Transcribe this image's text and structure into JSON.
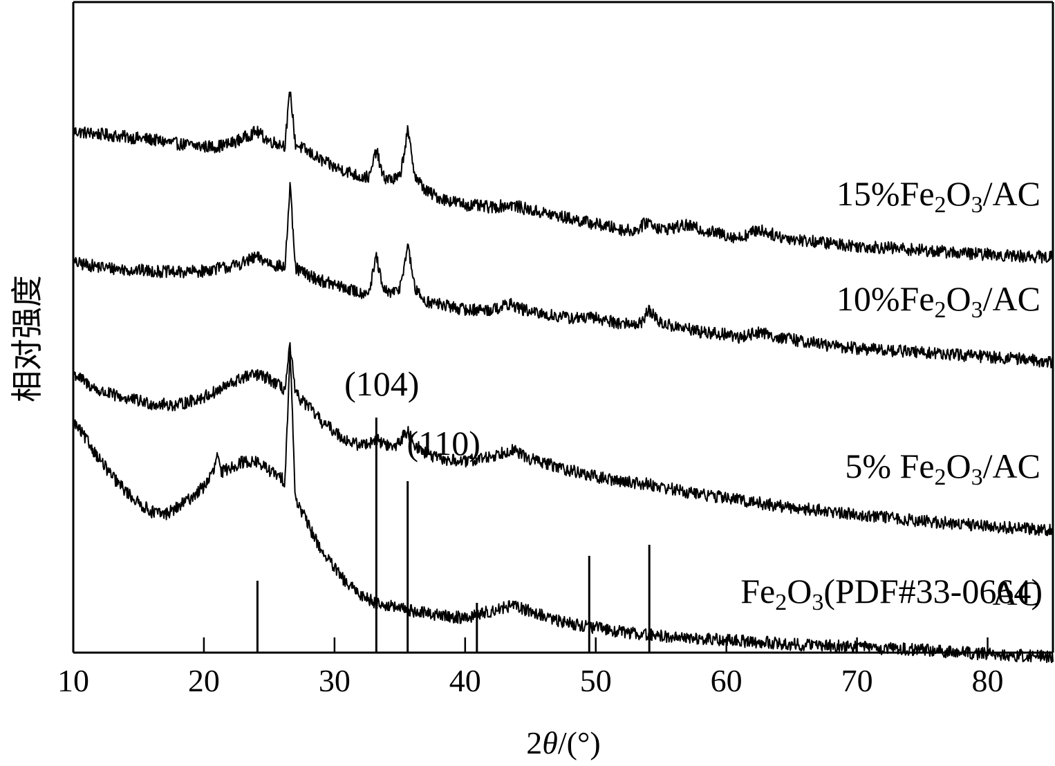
{
  "chart_data": {
    "type": "line",
    "xlabel": {
      "prefix": "2",
      "theta": "θ",
      "suffix": "/(°)"
    },
    "ylabel": "相对强度",
    "xlim": [
      10,
      85
    ],
    "xticks": [
      10,
      20,
      30,
      40,
      50,
      60,
      70,
      80
    ],
    "grid": false,
    "legend": "labels at right end of each trace",
    "series": [
      {
        "name": "15%Fe2O3/AC",
        "label_parts": [
          "15%Fe",
          "2",
          "O",
          "3",
          "/AC"
        ],
        "offset": 3.0,
        "points": [
          [
            10,
            0.95
          ],
          [
            12,
            0.93
          ],
          [
            14,
            0.91
          ],
          [
            16,
            0.89
          ],
          [
            18,
            0.86
          ],
          [
            20,
            0.84
          ],
          [
            21,
            0.84
          ],
          [
            22,
            0.86
          ],
          [
            23,
            0.9
          ],
          [
            24,
            0.95
          ],
          [
            25,
            0.88
          ],
          [
            26.2,
            0.85
          ],
          [
            26.6,
            1.25
          ],
          [
            27.0,
            0.86
          ],
          [
            28,
            0.8
          ],
          [
            29,
            0.74
          ],
          [
            30,
            0.69
          ],
          [
            31,
            0.66
          ],
          [
            32,
            0.62
          ],
          [
            32.7,
            0.62
          ],
          [
            33.2,
            0.82
          ],
          [
            33.7,
            0.62
          ],
          [
            34.5,
            0.6
          ],
          [
            35.0,
            0.62
          ],
          [
            35.6,
            0.95
          ],
          [
            36.2,
            0.62
          ],
          [
            37,
            0.52
          ],
          [
            38,
            0.47
          ],
          [
            40,
            0.42
          ],
          [
            42,
            0.4
          ],
          [
            43.5,
            0.42
          ],
          [
            45,
            0.38
          ],
          [
            48,
            0.32
          ],
          [
            50,
            0.28
          ],
          [
            52,
            0.24
          ],
          [
            53,
            0.23
          ],
          [
            54,
            0.3
          ],
          [
            55,
            0.24
          ],
          [
            57,
            0.27
          ],
          [
            58,
            0.24
          ],
          [
            60,
            0.2
          ],
          [
            61,
            0.18
          ],
          [
            62.5,
            0.24
          ],
          [
            64,
            0.19
          ],
          [
            66,
            0.16
          ],
          [
            68,
            0.14
          ],
          [
            70,
            0.12
          ],
          [
            72,
            0.11
          ],
          [
            75,
            0.09
          ],
          [
            78,
            0.07
          ],
          [
            80,
            0.06
          ],
          [
            82,
            0.05
          ],
          [
            85,
            0.04
          ]
        ]
      },
      {
        "name": "10%Fe2O3/AC",
        "label_parts": [
          "10%Fe",
          "2",
          "O",
          "3",
          "/AC"
        ],
        "offset": 2.0,
        "points": [
          [
            10,
            1.0
          ],
          [
            12,
            0.97
          ],
          [
            14,
            0.95
          ],
          [
            16,
            0.94
          ],
          [
            18,
            0.93
          ],
          [
            20,
            0.94
          ],
          [
            21,
            0.96
          ],
          [
            22,
            0.97
          ],
          [
            23,
            1.0
          ],
          [
            24,
            1.04
          ],
          [
            25,
            1.0
          ],
          [
            26.2,
            0.96
          ],
          [
            26.6,
            1.55
          ],
          [
            27.0,
            0.96
          ],
          [
            28,
            0.91
          ],
          [
            29,
            0.87
          ],
          [
            30,
            0.84
          ],
          [
            31,
            0.81
          ],
          [
            32,
            0.78
          ],
          [
            32.7,
            0.8
          ],
          [
            33.2,
            1.05
          ],
          [
            33.7,
            0.8
          ],
          [
            34.5,
            0.78
          ],
          [
            35.0,
            0.82
          ],
          [
            35.6,
            1.12
          ],
          [
            36.2,
            0.8
          ],
          [
            37,
            0.72
          ],
          [
            38,
            0.7
          ],
          [
            40,
            0.66
          ],
          [
            42,
            0.66
          ],
          [
            43.5,
            0.7
          ],
          [
            45,
            0.64
          ],
          [
            48,
            0.6
          ],
          [
            50,
            0.6
          ],
          [
            52,
            0.56
          ],
          [
            53.5,
            0.56
          ],
          [
            54,
            0.66
          ],
          [
            55,
            0.56
          ],
          [
            57,
            0.52
          ],
          [
            58,
            0.5
          ],
          [
            60,
            0.48
          ],
          [
            61,
            0.46
          ],
          [
            62.5,
            0.5
          ],
          [
            64,
            0.46
          ],
          [
            66,
            0.43
          ],
          [
            68,
            0.4
          ],
          [
            70,
            0.38
          ],
          [
            72,
            0.37
          ],
          [
            75,
            0.35
          ],
          [
            78,
            0.33
          ],
          [
            80,
            0.32
          ],
          [
            82,
            0.31
          ],
          [
            85,
            0.28
          ]
        ]
      },
      {
        "name": "5% Fe2O3/AC",
        "label_parts": [
          "5% Fe",
          "2",
          "O",
          "3",
          "/AC"
        ],
        "offset": 1.0,
        "points": [
          [
            10,
            1.2
          ],
          [
            11,
            1.13
          ],
          [
            12,
            1.07
          ],
          [
            14,
            1.02
          ],
          [
            16,
            0.98
          ],
          [
            18,
            0.97
          ],
          [
            20,
            1.03
          ],
          [
            21,
            1.07
          ],
          [
            22,
            1.12
          ],
          [
            23,
            1.17
          ],
          [
            24,
            1.19
          ],
          [
            25,
            1.16
          ],
          [
            26.2,
            1.08
          ],
          [
            26.6,
            1.4
          ],
          [
            27.0,
            1.05
          ],
          [
            28,
            0.96
          ],
          [
            29,
            0.85
          ],
          [
            30,
            0.78
          ],
          [
            31,
            0.71
          ],
          [
            32,
            0.68
          ],
          [
            33.2,
            0.72
          ],
          [
            34.5,
            0.66
          ],
          [
            35.6,
            0.78
          ],
          [
            36.2,
            0.68
          ],
          [
            37,
            0.62
          ],
          [
            38,
            0.58
          ],
          [
            40,
            0.56
          ],
          [
            42,
            0.6
          ],
          [
            43.5,
            0.65
          ],
          [
            45,
            0.58
          ],
          [
            48,
            0.5
          ],
          [
            50,
            0.45
          ],
          [
            52,
            0.42
          ],
          [
            54,
            0.4
          ],
          [
            55,
            0.38
          ],
          [
            57,
            0.34
          ],
          [
            60,
            0.3
          ],
          [
            62,
            0.27
          ],
          [
            64,
            0.24
          ],
          [
            66,
            0.22
          ],
          [
            68,
            0.2
          ],
          [
            70,
            0.18
          ],
          [
            72,
            0.16
          ],
          [
            75,
            0.13
          ],
          [
            78,
            0.11
          ],
          [
            80,
            0.1
          ],
          [
            82,
            0.08
          ],
          [
            85,
            0.07
          ]
        ]
      },
      {
        "name": "AC",
        "label_parts": [
          "AC"
        ],
        "offset": 0.0,
        "points": [
          [
            10,
            1.85
          ],
          [
            11,
            1.72
          ],
          [
            12,
            1.58
          ],
          [
            13,
            1.45
          ],
          [
            14,
            1.35
          ],
          [
            15,
            1.26
          ],
          [
            16,
            1.2
          ],
          [
            17,
            1.18
          ],
          [
            18,
            1.23
          ],
          [
            19,
            1.3
          ],
          [
            20,
            1.38
          ],
          [
            20.8,
            1.5
          ],
          [
            21.0,
            1.62
          ],
          [
            21.3,
            1.48
          ],
          [
            22,
            1.52
          ],
          [
            23,
            1.56
          ],
          [
            24,
            1.56
          ],
          [
            25,
            1.5
          ],
          [
            26.2,
            1.42
          ],
          [
            26.6,
            2.36
          ],
          [
            27.0,
            1.3
          ],
          [
            28,
            1.1
          ],
          [
            29,
            0.92
          ],
          [
            30,
            0.79
          ],
          [
            31,
            0.67
          ],
          [
            32,
            0.6
          ],
          [
            33,
            0.55
          ],
          [
            34,
            0.52
          ],
          [
            35,
            0.5
          ],
          [
            36,
            0.48
          ],
          [
            38,
            0.45
          ],
          [
            40,
            0.43
          ],
          [
            42,
            0.48
          ],
          [
            43.5,
            0.52
          ],
          [
            45,
            0.48
          ],
          [
            47,
            0.41
          ],
          [
            50,
            0.36
          ],
          [
            52,
            0.33
          ],
          [
            55,
            0.3
          ],
          [
            58,
            0.28
          ],
          [
            60,
            0.27
          ],
          [
            62,
            0.26
          ],
          [
            65,
            0.24
          ],
          [
            68,
            0.23
          ],
          [
            70,
            0.22
          ],
          [
            72,
            0.21
          ],
          [
            75,
            0.2
          ],
          [
            78,
            0.18
          ],
          [
            80,
            0.17
          ],
          [
            82,
            0.16
          ],
          [
            85,
            0.15
          ]
        ]
      }
    ],
    "reference": {
      "label_parts": [
        "Fe",
        "2",
        "O",
        "3",
        "(PDF#33-0664)"
      ],
      "sticks": [
        {
          "x": 24.1,
          "h": 0.26
        },
        {
          "x": 33.2,
          "h": 0.85,
          "hkl": "(104)"
        },
        {
          "x": 35.6,
          "h": 0.62,
          "hkl": "(110)"
        },
        {
          "x": 40.9,
          "h": 0.18
        },
        {
          "x": 49.5,
          "h": 0.35
        },
        {
          "x": 54.1,
          "h": 0.39
        }
      ]
    },
    "colors": {
      "line": "#000000",
      "background": "#ffffff"
    }
  }
}
